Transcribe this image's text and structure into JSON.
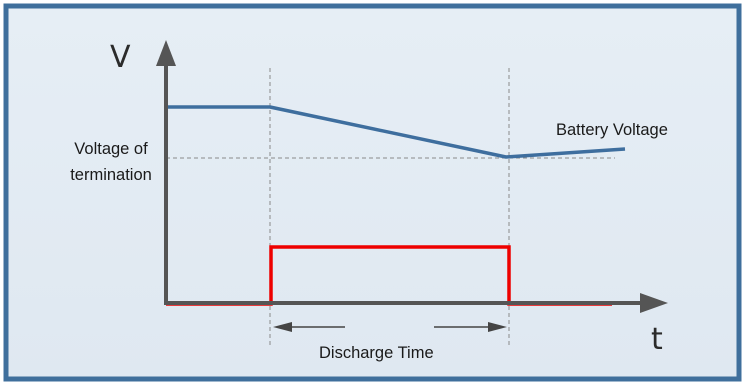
{
  "labels": {
    "y_axis": "V",
    "x_axis": "t",
    "termination_line1": "Voltage of",
    "termination_line2": "termination",
    "battery_voltage": "Battery Voltage",
    "discharge_time": "Discharge Time"
  },
  "colors": {
    "border": "#3f6f9c",
    "background": "#e8eff5",
    "voltage_line": "#3e6e9e",
    "pulse_line": "#ee0000",
    "axis": "#555555",
    "guide": "#8a8a8a"
  }
}
